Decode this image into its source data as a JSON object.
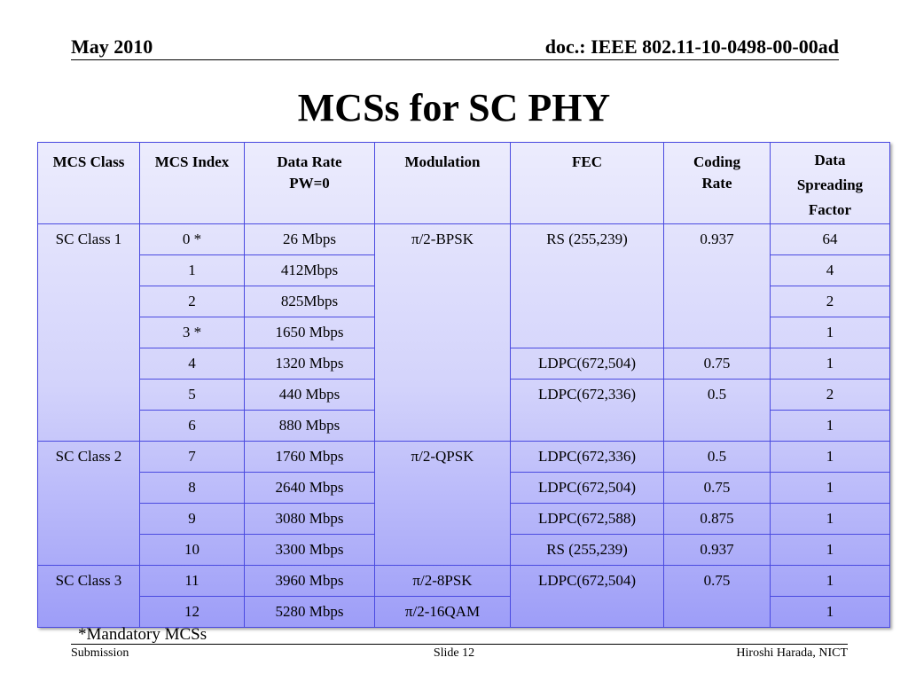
{
  "header": {
    "date": "May 2010",
    "doc_id": "doc.: IEEE 802.11-10-0498-00-00ad"
  },
  "title": "MCSs for SC PHY",
  "table": {
    "headers": {
      "mcs_class": "MCS Class",
      "mcs_index": "MCS Index",
      "data_rate_line1": "Data Rate",
      "data_rate_line2": "PW=0",
      "modulation": "Modulation",
      "fec": "FEC",
      "coding_rate": "Coding Rate",
      "dsf_line1": "Data",
      "dsf_line2": "Spreading",
      "dsf_line3": "Factor"
    },
    "classes": [
      "SC Class 1",
      "SC Class 2",
      "SC Class 3"
    ],
    "rows": [
      {
        "index": "0 *",
        "rate": "26 Mbps",
        "modulation": "π/2-BPSK",
        "fec": "RS (255,239)",
        "coding_rate": "0.937",
        "dsf": "64"
      },
      {
        "index": "1",
        "rate": "412Mbps",
        "dsf": "4"
      },
      {
        "index": "2",
        "rate": "825Mbps",
        "dsf": "2"
      },
      {
        "index": "3 *",
        "rate": "1650 Mbps",
        "dsf": "1"
      },
      {
        "index": "4",
        "rate": "1320 Mbps",
        "fec": "LDPC(672,504)",
        "coding_rate": "0.75",
        "dsf": "1"
      },
      {
        "index": "5",
        "rate": "440 Mbps",
        "fec": "LDPC(672,336)",
        "coding_rate": "0.5",
        "dsf": "2"
      },
      {
        "index": "6",
        "rate": "880 Mbps",
        "dsf": "1"
      },
      {
        "index": "7",
        "rate": "1760 Mbps",
        "modulation": "π/2-QPSK",
        "fec": "LDPC(672,336)",
        "coding_rate": "0.5",
        "dsf": "1"
      },
      {
        "index": "8",
        "rate": "2640 Mbps",
        "fec": "LDPC(672,504)",
        "coding_rate": "0.75",
        "dsf": "1"
      },
      {
        "index": "9",
        "rate": "3080 Mbps",
        "fec": "LDPC(672,588)",
        "coding_rate": "0.875",
        "dsf": "1"
      },
      {
        "index": "10",
        "rate": "3300 Mbps",
        "fec": "RS (255,239)",
        "coding_rate": "0.937",
        "dsf": "1"
      },
      {
        "index": "11",
        "rate": "3960 Mbps",
        "modulation": "π/2-8PSK",
        "fec": "LDPC(672,504)",
        "coding_rate": "0.75",
        "dsf": "1"
      },
      {
        "index": "12",
        "rate": "5280 Mbps",
        "modulation": "π/2-16QAM",
        "dsf": "1"
      }
    ]
  },
  "note": "*Mandatory MCSs",
  "footer": {
    "left": "Submission",
    "center": "Slide 12",
    "right": "Hiroshi Harada, NICT"
  },
  "colors": {
    "table_top": "#ececfd",
    "table_bottom": "#9d9df8",
    "table_border": "#4a4ae0"
  }
}
